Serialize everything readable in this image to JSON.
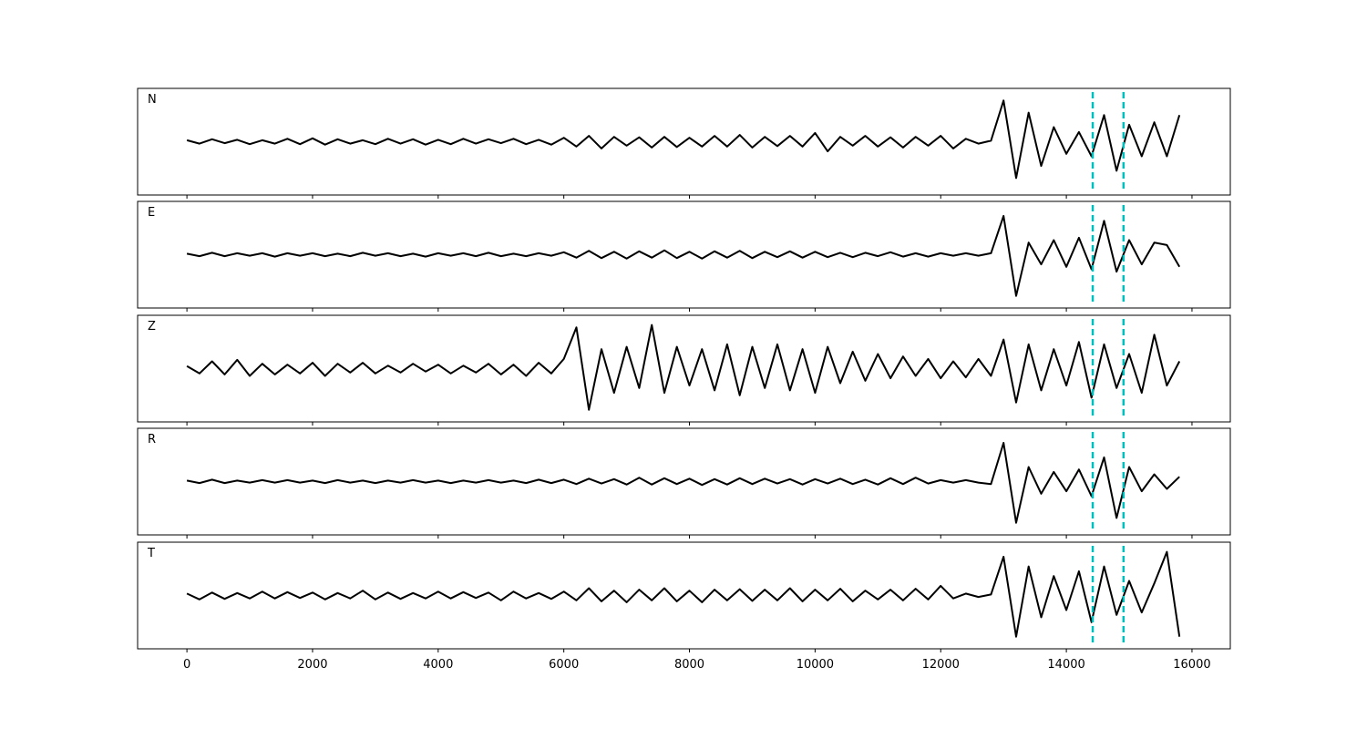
{
  "chart_data": {
    "type": "line",
    "layout": "stacked",
    "x": [
      0,
      200,
      400,
      600,
      800,
      1000,
      1200,
      1400,
      1600,
      1800,
      2000,
      2200,
      2400,
      2600,
      2800,
      3000,
      3200,
      3400,
      3600,
      3800,
      4000,
      4200,
      4400,
      4600,
      4800,
      5000,
      5200,
      5400,
      5600,
      5800,
      6000,
      6200,
      6400,
      6600,
      6800,
      7000,
      7200,
      7400,
      7600,
      7800,
      8000,
      8200,
      8400,
      8600,
      8800,
      9000,
      9200,
      9400,
      9600,
      9800,
      10000,
      10200,
      10400,
      10600,
      10800,
      11000,
      11200,
      11400,
      11600,
      11800,
      12000,
      12200,
      12400,
      12600,
      12800,
      13000,
      13200,
      13400,
      13600,
      13800,
      14000,
      14200,
      14400,
      14600,
      14800,
      15000,
      15200,
      15400,
      15600,
      15800
    ],
    "xlim": [
      -785,
      16610
    ],
    "xticks": [
      0,
      2000,
      4000,
      6000,
      8000,
      10000,
      12000,
      14000,
      16000
    ],
    "ylim": [
      -1.1,
      1.1
    ],
    "vlines": {
      "values": [
        14420,
        14910
      ],
      "color": "#00bfbf"
    },
    "series": [
      {
        "name": "N",
        "color": "#000000",
        "values": [
          0.03,
          -0.04,
          0.05,
          -0.03,
          0.04,
          -0.05,
          0.03,
          -0.04,
          0.06,
          -0.05,
          0.07,
          -0.06,
          0.05,
          -0.04,
          0.03,
          -0.05,
          0.06,
          -0.04,
          0.05,
          -0.06,
          0.04,
          -0.05,
          0.06,
          -0.04,
          0.05,
          -0.03,
          0.06,
          -0.05,
          0.04,
          -0.06,
          0.08,
          -0.1,
          0.12,
          -0.14,
          0.1,
          -0.08,
          0.09,
          -0.12,
          0.1,
          -0.11,
          0.08,
          -0.1,
          0.12,
          -0.1,
          0.14,
          -0.12,
          0.1,
          -0.09,
          0.12,
          -0.1,
          0.18,
          -0.2,
          0.1,
          -0.08,
          0.12,
          -0.1,
          0.09,
          -0.12,
          0.1,
          -0.08,
          0.12,
          -0.14,
          0.06,
          -0.04,
          0.02,
          0.85,
          -0.75,
          0.6,
          -0.5,
          0.3,
          -0.25,
          0.2,
          -0.3,
          0.55,
          -0.6,
          0.35,
          -0.3,
          0.4,
          -0.3,
          0.55
        ]
      },
      {
        "name": "E",
        "color": "#000000",
        "values": [
          0.02,
          -0.03,
          0.04,
          -0.03,
          0.03,
          -0.02,
          0.03,
          -0.04,
          0.03,
          -0.02,
          0.03,
          -0.03,
          0.02,
          -0.03,
          0.04,
          -0.02,
          0.03,
          -0.03,
          0.02,
          -0.04,
          0.03,
          -0.02,
          0.03,
          -0.03,
          0.04,
          -0.03,
          0.02,
          -0.03,
          0.03,
          -0.02,
          0.05,
          -0.06,
          0.08,
          -0.07,
          0.06,
          -0.08,
          0.07,
          -0.06,
          0.09,
          -0.07,
          0.06,
          -0.08,
          0.07,
          -0.06,
          0.08,
          -0.07,
          0.06,
          -0.05,
          0.07,
          -0.06,
          0.06,
          -0.05,
          0.04,
          -0.05,
          0.04,
          -0.03,
          0.05,
          -0.04,
          0.03,
          -0.04,
          0.03,
          -0.02,
          0.03,
          -0.02,
          0.03,
          0.8,
          -0.85,
          0.25,
          -0.2,
          0.3,
          -0.25,
          0.35,
          -0.3,
          0.7,
          -0.35,
          0.3,
          -0.2,
          0.25,
          0.2,
          -0.25
        ]
      },
      {
        "name": "Z",
        "color": "#000000",
        "values": [
          0.05,
          -0.1,
          0.15,
          -0.12,
          0.18,
          -0.15,
          0.1,
          -0.12,
          0.08,
          -0.1,
          0.12,
          -0.15,
          0.1,
          -0.08,
          0.12,
          -0.1,
          0.06,
          -0.08,
          0.1,
          -0.06,
          0.08,
          -0.1,
          0.06,
          -0.08,
          0.1,
          -0.12,
          0.08,
          -0.15,
          0.12,
          -0.1,
          0.2,
          0.85,
          -0.85,
          0.4,
          -0.5,
          0.45,
          -0.4,
          0.9,
          -0.5,
          0.45,
          -0.35,
          0.4,
          -0.45,
          0.5,
          -0.55,
          0.45,
          -0.4,
          0.5,
          -0.45,
          0.4,
          -0.5,
          0.45,
          -0.3,
          0.35,
          -0.25,
          0.3,
          -0.2,
          0.25,
          -0.15,
          0.2,
          -0.2,
          0.15,
          -0.18,
          0.2,
          -0.15,
          0.6,
          -0.7,
          0.5,
          -0.45,
          0.4,
          -0.35,
          0.55,
          -0.6,
          0.5,
          -0.4,
          0.3,
          -0.5,
          0.7,
          -0.35,
          0.15
        ]
      },
      {
        "name": "R",
        "color": "#000000",
        "values": [
          0.02,
          -0.03,
          0.04,
          -0.03,
          0.02,
          -0.02,
          0.03,
          -0.02,
          0.03,
          -0.02,
          0.02,
          -0.03,
          0.03,
          -0.02,
          0.02,
          -0.03,
          0.02,
          -0.02,
          0.03,
          -0.02,
          0.02,
          -0.03,
          0.02,
          -0.02,
          0.03,
          -0.02,
          0.02,
          -0.03,
          0.04,
          -0.03,
          0.04,
          -0.05,
          0.06,
          -0.04,
          0.05,
          -0.06,
          0.08,
          -0.06,
          0.07,
          -0.05,
          0.06,
          -0.07,
          0.05,
          -0.06,
          0.07,
          -0.05,
          0.06,
          -0.04,
          0.05,
          -0.06,
          0.05,
          -0.04,
          0.06,
          -0.05,
          0.04,
          -0.06,
          0.07,
          -0.05,
          0.08,
          -0.04,
          0.03,
          -0.02,
          0.03,
          -0.02,
          -0.05,
          0.8,
          -0.85,
          0.3,
          -0.25,
          0.2,
          -0.2,
          0.25,
          -0.3,
          0.5,
          -0.75,
          0.3,
          -0.2,
          0.15,
          -0.15,
          0.1
        ]
      },
      {
        "name": "T",
        "color": "#000000",
        "values": [
          0.04,
          -0.08,
          0.06,
          -0.07,
          0.05,
          -0.06,
          0.08,
          -0.06,
          0.07,
          -0.05,
          0.06,
          -0.08,
          0.05,
          -0.06,
          0.1,
          -0.08,
          0.06,
          -0.07,
          0.05,
          -0.06,
          0.08,
          -0.06,
          0.07,
          -0.05,
          0.06,
          -0.1,
          0.08,
          -0.06,
          0.05,
          -0.07,
          0.08,
          -0.1,
          0.15,
          -0.12,
          0.1,
          -0.14,
          0.12,
          -0.1,
          0.15,
          -0.12,
          0.1,
          -0.14,
          0.12,
          -0.1,
          0.13,
          -0.11,
          0.12,
          -0.1,
          0.15,
          -0.12,
          0.12,
          -0.1,
          0.14,
          -0.12,
          0.1,
          -0.08,
          0.12,
          -0.1,
          0.14,
          -0.08,
          0.2,
          -0.06,
          0.04,
          -0.03,
          0.02,
          0.8,
          -0.85,
          0.6,
          -0.45,
          0.4,
          -0.3,
          0.5,
          -0.55,
          0.6,
          -0.4,
          0.3,
          -0.35,
          0.25,
          0.9,
          -0.85
        ]
      }
    ]
  }
}
